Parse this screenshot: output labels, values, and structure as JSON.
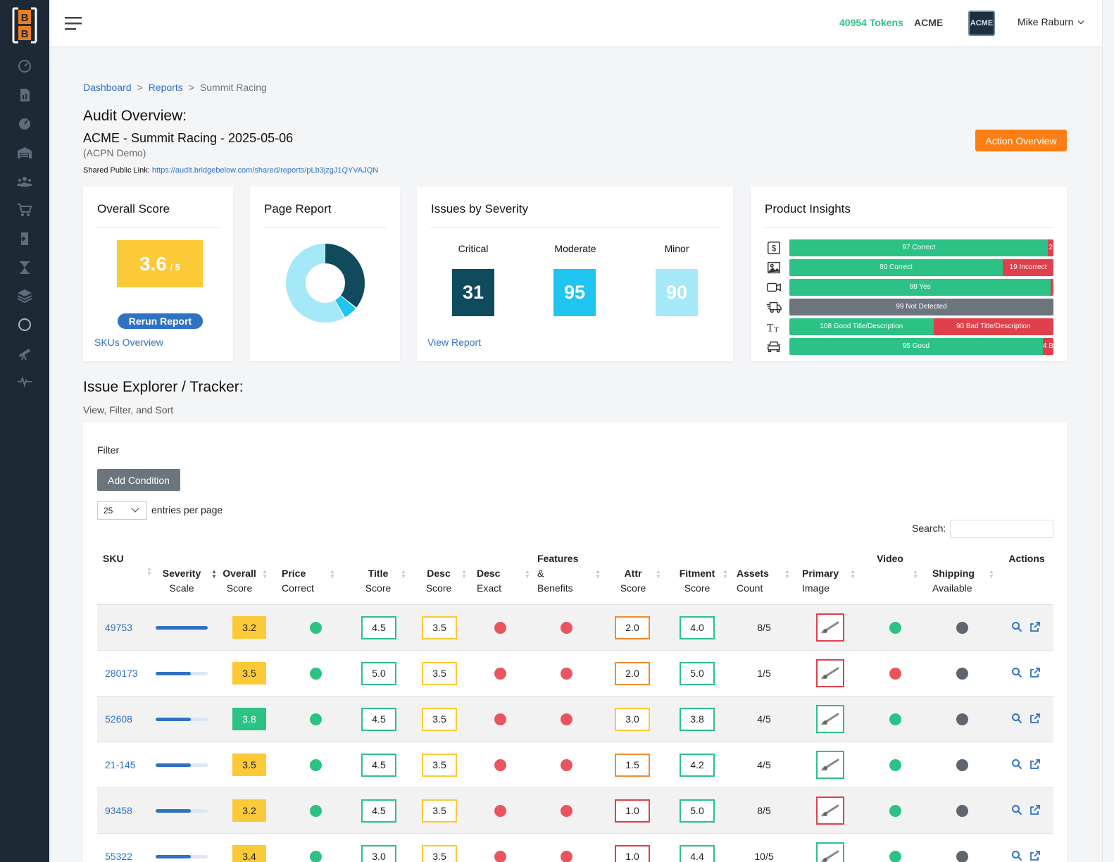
{
  "header": {
    "tokens": "40954 Tokens",
    "company": "ACME",
    "company_logo_text": "ACME",
    "user": "Mike Raburn"
  },
  "sidebar": {
    "logo_letters": [
      "B",
      "B"
    ],
    "icons": [
      "speedometer-icon",
      "report-icon",
      "gauge-icon",
      "warehouse-icon",
      "users-icon",
      "cart-icon",
      "import-icon",
      "hourglass-icon",
      "layers-icon",
      "circle-icon",
      "telescope-icon",
      "pulse-icon"
    ]
  },
  "breadcrumb": {
    "items": [
      "Dashboard",
      "Reports"
    ],
    "current": "Summit Racing",
    "separator": ">"
  },
  "audit": {
    "heading": "Audit Overview:",
    "name": "ACME - Summit Racing - 2025-05-06",
    "subtitle": "(ACPN Demo)",
    "share_label": "Shared Public Link:",
    "share_url": "https://audit.bridgebelow.com/shared/reports/pLb3jzgJ1QYVAJQN",
    "action_button": "Action Overview"
  },
  "cards": {
    "overall": {
      "title": "Overall Score",
      "score": "3.6",
      "max": "/ 5",
      "rerun": "Rerun Report",
      "link": "SKUs Overview"
    },
    "page_report": {
      "title": "Page Report",
      "donut": [
        {
          "value": 36,
          "color": "#0f4b5c"
        },
        {
          "value": 6,
          "color": "#20c4f0"
        },
        {
          "value": 58,
          "color": "#a5e8f8"
        }
      ]
    },
    "severity": {
      "title": "Issues by Severity",
      "items": [
        {
          "label": "Critical",
          "value": "31",
          "color": "#0f4b5c"
        },
        {
          "label": "Moderate",
          "value": "95",
          "color": "#20c4f0"
        },
        {
          "label": "Minor",
          "value": "90",
          "color": "#a5e8f8"
        }
      ],
      "link": "View Report"
    },
    "insights": {
      "title": "Product Insights",
      "rows": [
        {
          "icon": "dollar-icon",
          "segments": [
            {
              "label": "97 Correct",
              "value": 97,
              "color": "#2cc185"
            },
            {
              "label": "2",
              "value": 2,
              "color": "#e0404c"
            }
          ]
        },
        {
          "icon": "image-icon",
          "segments": [
            {
              "label": "80 Correct",
              "value": 80,
              "color": "#2cc185"
            },
            {
              "label": "19 Incorrect",
              "value": 19,
              "color": "#e0404c"
            }
          ]
        },
        {
          "icon": "video-icon",
          "segments": [
            {
              "label": "98 Yes",
              "value": 98,
              "color": "#2cc185"
            },
            {
              "label": "",
              "value": 1,
              "color": "#e0404c"
            }
          ]
        },
        {
          "icon": "truck-icon",
          "segments": [
            {
              "label": "99 Not Detected",
              "value": 99,
              "color": "#6c757d"
            }
          ]
        },
        {
          "icon": "text-size-icon",
          "segments": [
            {
              "label": "108 Good Title/Description",
              "value": 108,
              "color": "#2cc185"
            },
            {
              "label": "90 Bad Title/Description",
              "value": 90,
              "color": "#e0404c"
            }
          ]
        },
        {
          "icon": "car-icon",
          "segments": [
            {
              "label": "95 Good",
              "value": 95,
              "color": "#2cc185"
            },
            {
              "label": "4 B",
              "value": 4,
              "color": "#e0404c"
            }
          ]
        }
      ]
    }
  },
  "explorer": {
    "heading": "Issue Explorer / Tracker:",
    "subheading": "View, Filter, and Sort",
    "filter_label": "Filter",
    "add_condition": "Add Condition",
    "entries_value": "25",
    "entries_label": "entries per page",
    "search_label": "Search:",
    "columns": [
      {
        "key": "sku",
        "line1": "SKU",
        "line2": ""
      },
      {
        "key": "severity",
        "line1": "Severity",
        "line2": "Scale"
      },
      {
        "key": "overall",
        "line1": "Overall",
        "line2": "Score"
      },
      {
        "key": "price",
        "line1": "Price",
        "line2": "Correct"
      },
      {
        "key": "title",
        "line1": "Title",
        "line2": "Score"
      },
      {
        "key": "desc",
        "line1": "Desc",
        "line2": "Score"
      },
      {
        "key": "exact",
        "line1": "Desc",
        "line2": "Exact"
      },
      {
        "key": "features",
        "line1": "Features",
        "line2": "&",
        "line3": "Benefits"
      },
      {
        "key": "attr",
        "line1": "Attr",
        "line2": "Score"
      },
      {
        "key": "fitment",
        "line1": "Fitment",
        "line2": "Score"
      },
      {
        "key": "assets",
        "line1": "Assets",
        "line2": "Count"
      },
      {
        "key": "image",
        "line1": "Primary",
        "line2": "Image"
      },
      {
        "key": "video",
        "line1": "Video",
        "line2": ""
      },
      {
        "key": "shipping",
        "line1": "Shipping",
        "line2": "Available"
      },
      {
        "key": "actions",
        "line1": "Actions",
        "line2": ""
      }
    ],
    "rows": [
      {
        "sku": "49753",
        "severity": 1.0,
        "overall": "3.2",
        "overall_color": "yellow",
        "price": "green",
        "title": "4.5",
        "title_c": "green",
        "desc": "3.5",
        "desc_c": "yellow",
        "exact": "red",
        "features": "red",
        "attr": "2.0",
        "attr_c": "orange",
        "fitment": "4.0",
        "fitment_c": "green",
        "assets": "8/5",
        "image_c": "red",
        "video": "green",
        "shipping": "gray"
      },
      {
        "sku": "280173",
        "severity": 0.68,
        "overall": "3.5",
        "overall_color": "yellow",
        "price": "green",
        "title": "5.0",
        "title_c": "green",
        "desc": "3.5",
        "desc_c": "yellow",
        "exact": "red",
        "features": "red",
        "attr": "2.0",
        "attr_c": "orange",
        "fitment": "5.0",
        "fitment_c": "green",
        "assets": "1/5",
        "image_c": "red",
        "video": "red",
        "shipping": "gray"
      },
      {
        "sku": "52608",
        "severity": 0.68,
        "overall": "3.8",
        "overall_color": "green",
        "price": "green",
        "title": "4.5",
        "title_c": "green",
        "desc": "3.5",
        "desc_c": "yellow",
        "exact": "red",
        "features": "red",
        "attr": "3.0",
        "attr_c": "yellow",
        "fitment": "3.8",
        "fitment_c": "green",
        "assets": "4/5",
        "image_c": "green",
        "video": "green",
        "shipping": "gray"
      },
      {
        "sku": "21-145",
        "severity": 0.68,
        "overall": "3.5",
        "overall_color": "yellow",
        "price": "green",
        "title": "4.5",
        "title_c": "green",
        "desc": "3.5",
        "desc_c": "yellow",
        "exact": "red",
        "features": "red",
        "attr": "1.5",
        "attr_c": "orange",
        "fitment": "4.2",
        "fitment_c": "green",
        "assets": "4/5",
        "image_c": "green",
        "video": "green",
        "shipping": "gray"
      },
      {
        "sku": "93458",
        "severity": 0.68,
        "overall": "3.2",
        "overall_color": "yellow",
        "price": "green",
        "title": "4.5",
        "title_c": "green",
        "desc": "3.5",
        "desc_c": "yellow",
        "exact": "red",
        "features": "red",
        "attr": "1.0",
        "attr_c": "red",
        "fitment": "5.0",
        "fitment_c": "green",
        "assets": "8/5",
        "image_c": "red",
        "video": "green",
        "shipping": "gray"
      },
      {
        "sku": "55322",
        "severity": 0.68,
        "overall": "3.4",
        "overall_color": "yellow",
        "price": "green",
        "title": "3.0",
        "title_c": "green",
        "desc": "3.5",
        "desc_c": "yellow",
        "exact": "red",
        "features": "red",
        "attr": "1.0",
        "attr_c": "red",
        "fitment": "4.4",
        "fitment_c": "green",
        "assets": "10/5",
        "image_c": "green",
        "video": "green",
        "shipping": "gray"
      }
    ]
  }
}
